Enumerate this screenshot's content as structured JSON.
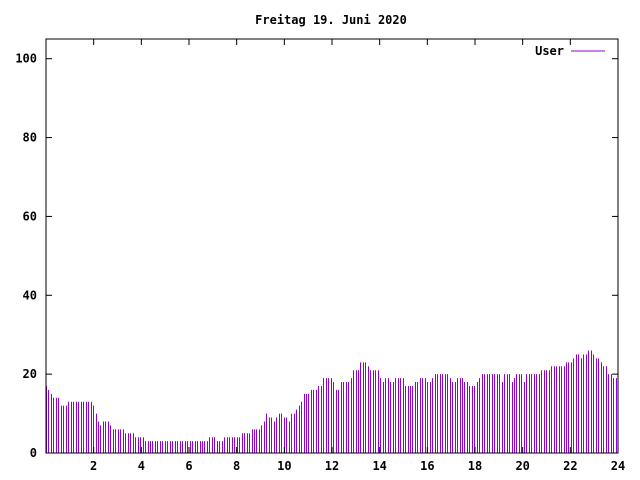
{
  "chart_data": {
    "type": "bar",
    "title": "Freitag 19. Juni 2020",
    "xlabel": "",
    "ylabel": "",
    "xlim": [
      0,
      24
    ],
    "ylim": [
      0,
      105
    ],
    "x_ticks": [
      2,
      4,
      6,
      8,
      10,
      12,
      14,
      16,
      18,
      20,
      22,
      24
    ],
    "y_ticks": [
      0,
      20,
      40,
      60,
      80,
      100
    ],
    "grid": false,
    "legend_position": "top-right",
    "series": [
      {
        "name": "User",
        "color": "#9400d3",
        "values": [
          17,
          16,
          15,
          14,
          14,
          14,
          12,
          12,
          12,
          13,
          13,
          13,
          13,
          13,
          13,
          13,
          13,
          13,
          13,
          12,
          10,
          8,
          7,
          8,
          8,
          8,
          7,
          6,
          6,
          6,
          6,
          6,
          5,
          5,
          5,
          5,
          4,
          4,
          4,
          4,
          3,
          3,
          3,
          3,
          3,
          3,
          3,
          3,
          3,
          3,
          3,
          3,
          3,
          3,
          3,
          3,
          3,
          3,
          3,
          3,
          3,
          3,
          3,
          3,
          3,
          3,
          4,
          4,
          4,
          3,
          3,
          3,
          4,
          4,
          4,
          4,
          4,
          4,
          4,
          5,
          5,
          5,
          5,
          6,
          6,
          6,
          6,
          7,
          8,
          10,
          9,
          9,
          8,
          9,
          10,
          10,
          9,
          9,
          8,
          10,
          10,
          11,
          12,
          13,
          15,
          15,
          15,
          16,
          16,
          16,
          17,
          17,
          19,
          19,
          19,
          19,
          18,
          16,
          16,
          18,
          18,
          18,
          18,
          19,
          21,
          21,
          21,
          23,
          23,
          23,
          22,
          21,
          21,
          21,
          21,
          19,
          18,
          19,
          19,
          18,
          18,
          19,
          19,
          19,
          19,
          17,
          17,
          17,
          17,
          18,
          18,
          19,
          19,
          19,
          18,
          18,
          19,
          20,
          20,
          20,
          20,
          20,
          20,
          19,
          18,
          18,
          19,
          19,
          19,
          18,
          18,
          17,
          17,
          17,
          18,
          19,
          20,
          20,
          20,
          20,
          20,
          20,
          20,
          20,
          18,
          20,
          20,
          20,
          18,
          19,
          20,
          20,
          20,
          18,
          20,
          20,
          20,
          20,
          20,
          20,
          21,
          21,
          21,
          21,
          22,
          22,
          22,
          22,
          22,
          22,
          23,
          23,
          23,
          24,
          25,
          25,
          24,
          25,
          25,
          26,
          26,
          25,
          24,
          24,
          23,
          22,
          22,
          20,
          20,
          19,
          19
        ]
      }
    ]
  }
}
